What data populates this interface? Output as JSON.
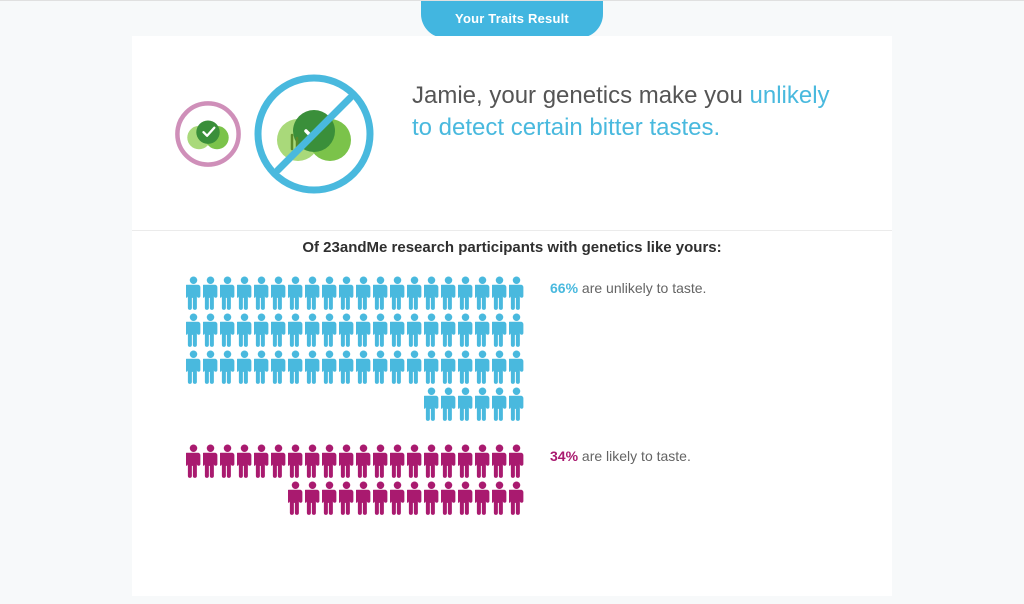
{
  "badge": {
    "label": "Your Traits Result"
  },
  "hero": {
    "intro": "Jamie, your genetics make you ",
    "highlight": "unlikely to detect certain bitter tastes."
  },
  "subhead": "Of 23andMe research participants with genetics like yours:",
  "colors": {
    "accent_blue": "#49b9de",
    "accent_magenta": "#a91a6f",
    "icon_ring_pink": "#cf8fb9",
    "icon_ring_blue": "#49b9de",
    "veg_dark": "#3a8f3a",
    "veg_mid": "#7bc34a",
    "veg_light": "#a9d97a"
  },
  "stats": {
    "people_per_row": 20,
    "a": {
      "percent": 66,
      "pct_label": "66%",
      "label": " are unlikely to taste."
    },
    "b": {
      "percent": 34,
      "pct_label": "34%",
      "label": " are likely to taste."
    }
  }
}
